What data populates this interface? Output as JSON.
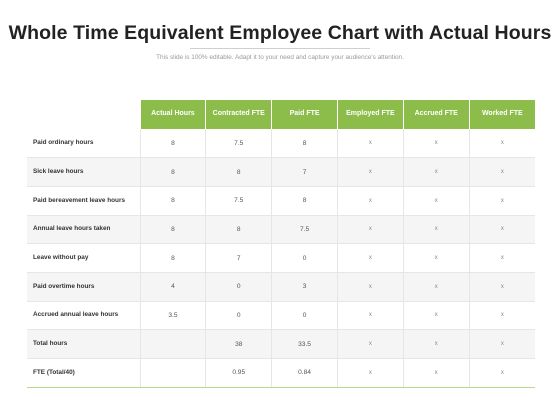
{
  "header": {
    "title": "Whole Time Equivalent Employee Chart with Actual Hours",
    "subtitle": "This slide is 100% editable. Adapt it to your need and capture your audience's attention."
  },
  "table": {
    "columns": [
      "Actual Hours",
      "Contracted FTE",
      "Paid FTE",
      "Employed FTE",
      "Accrued FTE",
      "Worked FTE"
    ],
    "rows": [
      {
        "label": "Paid ordinary hours",
        "cells": [
          "8",
          "7.5",
          "8",
          "x",
          "x",
          "x"
        ]
      },
      {
        "label": "Sick leave hours",
        "cells": [
          "8",
          "8",
          "7",
          "x",
          "x",
          "x"
        ]
      },
      {
        "label": "Paid bereavement leave hours",
        "cells": [
          "8",
          "7.5",
          "8",
          "x",
          "x",
          "x"
        ]
      },
      {
        "label": "Annual leave hours taken",
        "cells": [
          "8",
          "8",
          "7.5",
          "x",
          "x",
          "x"
        ]
      },
      {
        "label": "Leave without pay",
        "cells": [
          "8",
          "7",
          "0",
          "x",
          "x",
          "x"
        ]
      },
      {
        "label": "Paid overtime hours",
        "cells": [
          "4",
          "0",
          "3",
          "x",
          "x",
          "x"
        ]
      },
      {
        "label": "Accrued annual leave hours",
        "cells": [
          "3.5",
          "0",
          "0",
          "x",
          "x",
          "x"
        ]
      },
      {
        "label": "Total hours",
        "cells": [
          "",
          "38",
          "33.5",
          "x",
          "x",
          "x"
        ]
      },
      {
        "label": "FTE (Total/40)",
        "cells": [
          "",
          "0.95",
          "0.84",
          "x",
          "x",
          "x"
        ]
      }
    ]
  },
  "colors": {
    "header_green": "#8cbd4a",
    "row_stripe": "#f5f5f5"
  }
}
